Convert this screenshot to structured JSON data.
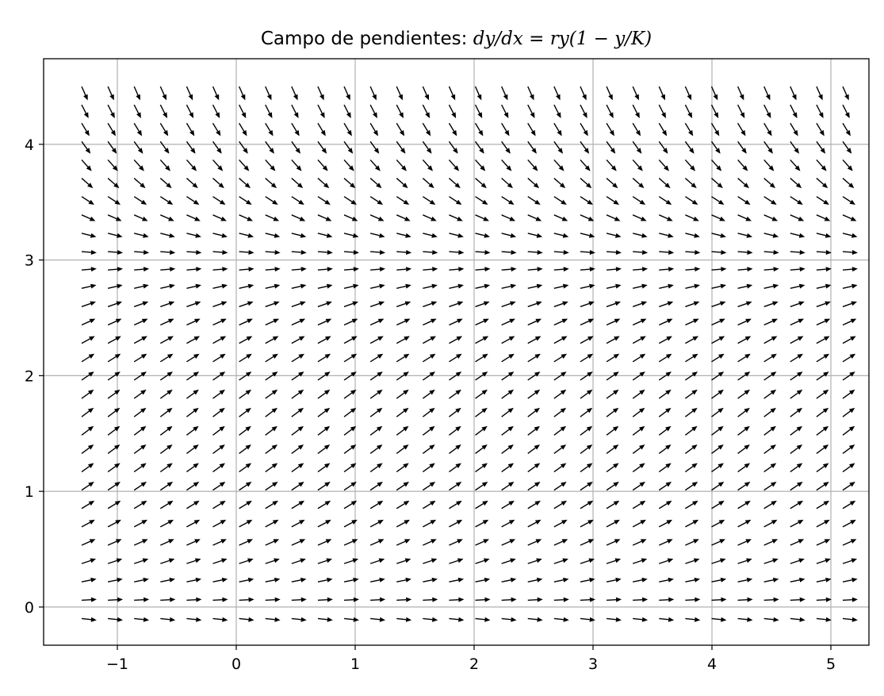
{
  "chart_data": {
    "type": "quiver",
    "title": {
      "prefix": "Campo de pendientes: ",
      "equation": "dy/dx = ry(1 − y/K)"
    },
    "xlabel": "",
    "ylabel": "",
    "xlim": [
      -1.62,
      5.32
    ],
    "ylim": [
      -0.33,
      4.74
    ],
    "xticks": [
      -1,
      0,
      1,
      2,
      3,
      4,
      5
    ],
    "xtick_labels": [
      "−1",
      "0",
      "1",
      "2",
      "3",
      "4",
      "5"
    ],
    "yticks": [
      0,
      1,
      2,
      3,
      4
    ],
    "ytick_labels": [
      "0",
      "1",
      "2",
      "3",
      "4"
    ],
    "grid": true,
    "field": {
      "x_start": -1.3,
      "x_end": 5.1,
      "nx": 30,
      "y_start": -0.1,
      "y_end": 4.5,
      "ny": 30,
      "r": 1.0,
      "K": 3.0
    },
    "colors": {
      "arrow": "#000000",
      "grid": "#b0b0b0",
      "axes": "#000000"
    }
  }
}
